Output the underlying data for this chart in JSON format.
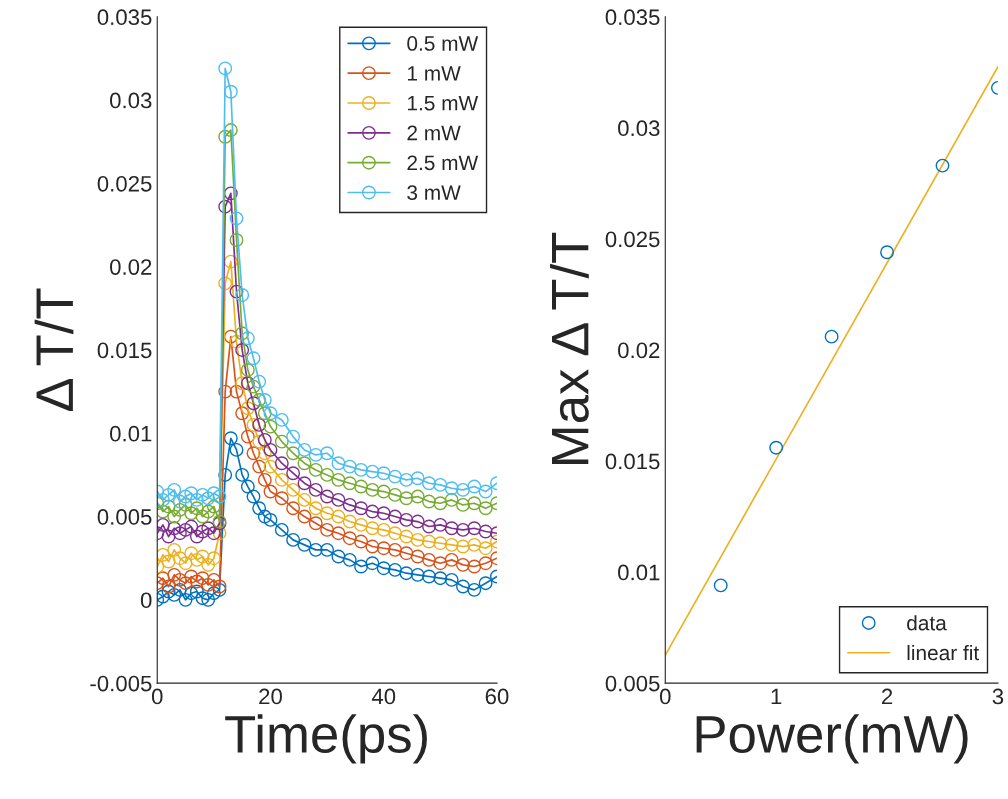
{
  "chart_data": [
    {
      "type": "line",
      "xlabel": "Time(ps)",
      "ylabel": "Δ T/T",
      "xlim": [
        0,
        60
      ],
      "ylim": [
        -0.005,
        0.035
      ],
      "xticks": [
        0,
        20,
        40,
        60
      ],
      "yticks": [
        -0.005,
        0,
        0.005,
        0.01,
        0.015,
        0.02,
        0.025,
        0.03,
        0.035
      ],
      "legend": "top right",
      "marker": "circle",
      "x": [
        0,
        1,
        2,
        3,
        4,
        5,
        6,
        7,
        8,
        9,
        10,
        11,
        12,
        13,
        14,
        15,
        16,
        17,
        18,
        19,
        20,
        22,
        24,
        26,
        28,
        30,
        32,
        34,
        36,
        38,
        40,
        42,
        44,
        46,
        48,
        50,
        52,
        54,
        56,
        58,
        60
      ],
      "series": [
        {
          "name": "0.5 mW",
          "color": "#0072bd",
          "values": [
            0.0,
            0.0002,
            0.0005,
            0.0003,
            0.0006,
            0.0,
            0.0004,
            0.0005,
            0.0001,
            0.0,
            0.0004,
            0.0006,
            0.0075,
            0.0097,
            0.009,
            0.0075,
            0.0068,
            0.0062,
            0.0055,
            0.005,
            0.0048,
            0.0042,
            0.0036,
            0.0033,
            0.003,
            0.003,
            0.0026,
            0.0024,
            0.002,
            0.0022,
            0.0019,
            0.0018,
            0.0016,
            0.0015,
            0.0014,
            0.0013,
            0.0012,
            0.0008,
            0.0006,
            0.001,
            0.0014
          ]
        },
        {
          "name": "1 mW",
          "color": "#d95319",
          "values": [
            0.001,
            0.0013,
            0.0008,
            0.0015,
            0.0012,
            0.001,
            0.0014,
            0.0011,
            0.0013,
            0.0009,
            0.0012,
            0.0008,
            0.0125,
            0.0158,
            0.0125,
            0.0112,
            0.0098,
            0.0088,
            0.008,
            0.0072,
            0.0065,
            0.0061,
            0.0055,
            0.005,
            0.0046,
            0.0042,
            0.004,
            0.0037,
            0.0035,
            0.0032,
            0.0031,
            0.003,
            0.0028,
            0.0026,
            0.0024,
            0.0022,
            0.0024,
            0.0021,
            0.002,
            0.0022,
            0.0025
          ]
        },
        {
          "name": "1.5 mW",
          "color": "#edb120",
          "values": [
            0.002,
            0.0027,
            0.0023,
            0.003,
            0.0025,
            0.0022,
            0.0028,
            0.0024,
            0.0026,
            0.0021,
            0.0025,
            0.004,
            0.019,
            0.0203,
            0.0155,
            0.013,
            0.0115,
            0.0105,
            0.0095,
            0.0088,
            0.008,
            0.0072,
            0.0066,
            0.006,
            0.0055,
            0.0052,
            0.005,
            0.0047,
            0.0045,
            0.0043,
            0.0042,
            0.004,
            0.0038,
            0.0036,
            0.0035,
            0.0034,
            0.0033,
            0.0032,
            0.0033,
            0.0031,
            0.0035
          ]
        },
        {
          "name": "2 mW",
          "color": "#7e2f8e",
          "values": [
            0.004,
            0.0045,
            0.0038,
            0.0043,
            0.004,
            0.0042,
            0.0044,
            0.0038,
            0.0041,
            0.0043,
            0.004,
            0.0046,
            0.0236,
            0.0244,
            0.0185,
            0.015,
            0.013,
            0.0118,
            0.0105,
            0.0096,
            0.009,
            0.0082,
            0.0076,
            0.007,
            0.0066,
            0.0062,
            0.006,
            0.0057,
            0.0055,
            0.0053,
            0.0052,
            0.005,
            0.0048,
            0.0047,
            0.0044,
            0.0045,
            0.0043,
            0.0042,
            0.0043,
            0.0041,
            0.004
          ]
        },
        {
          "name": "2.5 mW",
          "color": "#77ac30",
          "values": [
            0.0058,
            0.0053,
            0.0056,
            0.005,
            0.0054,
            0.0057,
            0.0052,
            0.0055,
            0.005,
            0.0053,
            0.0056,
            0.0047,
            0.0278,
            0.0282,
            0.0216,
            0.016,
            0.0138,
            0.0128,
            0.012,
            0.0112,
            0.0104,
            0.0095,
            0.0088,
            0.0082,
            0.0078,
            0.0075,
            0.0072,
            0.007,
            0.0068,
            0.0066,
            0.0065,
            0.0063,
            0.0061,
            0.0062,
            0.0059,
            0.0058,
            0.006,
            0.0057,
            0.0058,
            0.0055,
            0.0058
          ]
        },
        {
          "name": "3 mW",
          "color": "#4dbeee",
          "values": [
            0.0065,
            0.006,
            0.0063,
            0.0066,
            0.0059,
            0.0062,
            0.0064,
            0.006,
            0.0063,
            0.0061,
            0.0064,
            0.0062,
            0.0319,
            0.0305,
            0.0229,
            0.0183,
            0.0157,
            0.0145,
            0.0131,
            0.012,
            0.0112,
            0.0108,
            0.0098,
            0.009,
            0.0087,
            0.0088,
            0.0082,
            0.008,
            0.0078,
            0.0077,
            0.0076,
            0.0074,
            0.0072,
            0.0073,
            0.007,
            0.0069,
            0.0067,
            0.0066,
            0.0068,
            0.0065,
            0.007
          ]
        }
      ]
    },
    {
      "type": "scatter",
      "xlabel": "Power(mW)",
      "ylabel": "Max Δ T/T",
      "xlim": [
        0,
        3
      ],
      "ylim": [
        0.005,
        0.035
      ],
      "xticks": [
        0,
        1,
        2,
        3
      ],
      "yticks": [
        0.005,
        0.01,
        0.015,
        0.02,
        0.025,
        0.03,
        0.035
      ],
      "legend": "bottom right",
      "series": [
        {
          "name": "data",
          "type": "scatter",
          "marker": "circle",
          "color": "#0072bd",
          "x": [
            0.5,
            1,
            1.5,
            2,
            2.5,
            3
          ],
          "values": [
            0.0094,
            0.0156,
            0.0206,
            0.0244,
            0.0283,
            0.0318
          ]
        },
        {
          "name": "linear fit",
          "type": "line",
          "marker": "none",
          "color": "#edb120",
          "x": [
            0,
            3
          ],
          "values": [
            0.00626,
            0.03275
          ]
        }
      ]
    }
  ]
}
